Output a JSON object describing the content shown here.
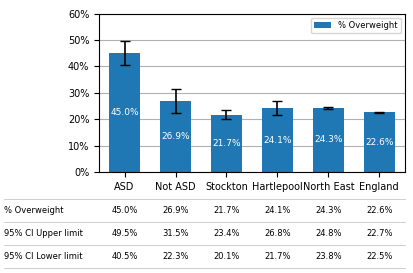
{
  "chart_data": {
    "type": "bar",
    "categories": [
      "ASD",
      "Not ASD",
      "Stockton",
      "Hartlepool",
      "North East",
      "England"
    ],
    "series": [
      {
        "name": "% Overweight",
        "values": [
          45.0,
          26.9,
          21.7,
          24.1,
          24.3,
          22.6
        ],
        "value_labels": [
          "45.0%",
          "26.9%",
          "21.7%",
          "24.1%",
          "24.3%",
          "22.6%"
        ],
        "ci_upper": [
          49.5,
          31.5,
          23.4,
          26.8,
          24.8,
          22.7
        ],
        "ci_lower": [
          40.5,
          22.3,
          20.1,
          21.7,
          23.8,
          22.5
        ]
      }
    ],
    "data_labels": true,
    "ylim": [
      0,
      60
    ],
    "yticks": [
      {
        "value": 0,
        "label": "0%"
      },
      {
        "value": 10,
        "label": "10%"
      },
      {
        "value": 20,
        "label": "20%"
      },
      {
        "value": 30,
        "label": "30%"
      },
      {
        "value": 40,
        "label": "40%"
      },
      {
        "value": 50,
        "label": "50%"
      },
      {
        "value": 60,
        "label": "60%"
      }
    ],
    "grid": true,
    "legend": "upper right",
    "table_rows": [
      [
        "% Overweight",
        "45.0%",
        "26.9%",
        "21.7%",
        "24.1%",
        "24.3%",
        "22.6%"
      ],
      [
        "95% CI Upper limit",
        "49.5%",
        "31.5%",
        "23.4%",
        "26.8%",
        "24.8%",
        "22.7%"
      ],
      [
        "95% CI Lower limit",
        "40.5%",
        "22.3%",
        "20.1%",
        "21.7%",
        "23.8%",
        "22.5%"
      ]
    ]
  }
}
